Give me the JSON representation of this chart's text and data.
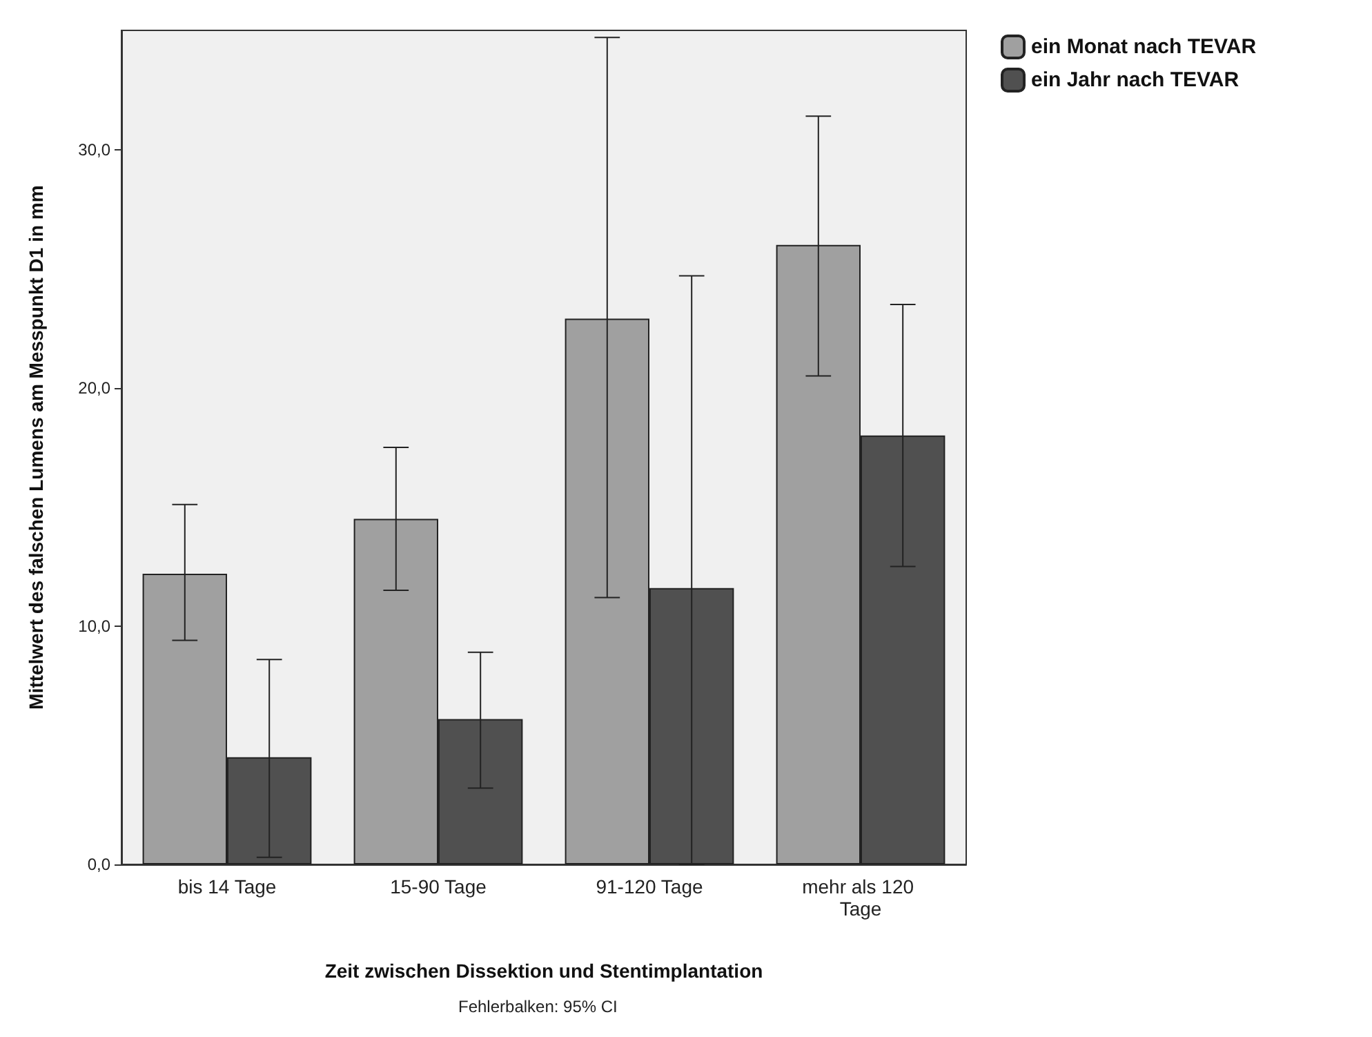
{
  "chart_data": {
    "type": "bar",
    "xlabel": "Zeit zwischen Dissektion und Stentimplantation",
    "ylabel": "Mittelwert des falschen Lumens am Messpunkt D1 in mm",
    "categories": [
      "bis 14 Tage",
      "15-90 Tage",
      "91-120 Tage",
      "mehr als 120 Tage"
    ],
    "series": [
      {
        "name": "ein Monat nach TEVAR",
        "color": "#a0a0a0",
        "values": [
          12.2,
          14.5,
          22.9,
          26.0
        ],
        "errors": [
          [
            9.4,
            15.1
          ],
          [
            11.5,
            17.5
          ],
          [
            11.2,
            34.7
          ],
          [
            20.5,
            31.4
          ]
        ]
      },
      {
        "name": "ein Jahr nach TEVAR",
        "color": "#505050",
        "values": [
          4.5,
          6.1,
          11.6,
          18.0
        ],
        "errors": [
          [
            0.3,
            8.6
          ],
          [
            3.2,
            8.9
          ],
          [
            0.0,
            24.7
          ],
          [
            12.5,
            23.5
          ]
        ]
      }
    ],
    "ylim": [
      0,
      35
    ],
    "yticks": [
      {
        "value": 0,
        "label": "0,0"
      },
      {
        "value": 10,
        "label": "10,0"
      },
      {
        "value": 20,
        "label": "20,0"
      },
      {
        "value": 30,
        "label": "30,0"
      }
    ],
    "grid": false,
    "legend": "top right",
    "annotations": [
      "Fehlerbalken: 95% CI"
    ]
  }
}
